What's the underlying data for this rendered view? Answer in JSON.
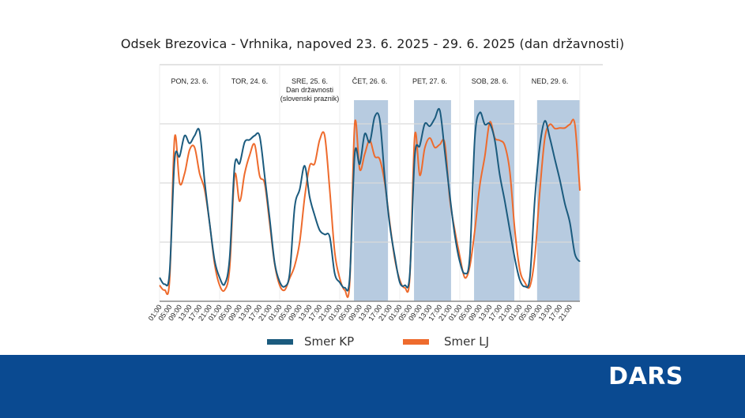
{
  "chart_data": {
    "type": "line",
    "title": "Odsek Brezovica - Vrhnika, napoved 23. 6. 2025 - 29. 6. 2025 (dan državnosti)",
    "xlabel": "",
    "ylabel": "",
    "x_unit": "hours since 23. 6. 00:00",
    "x_step_hours": 2,
    "xlim": [
      0,
      168
    ],
    "ylim": [
      0,
      400
    ],
    "grid": true,
    "legend_position": "bottom",
    "days": [
      {
        "lines": [
          "PON, 23. 6."
        ]
      },
      {
        "lines": [
          "TOR, 24. 6."
        ]
      },
      {
        "lines": [
          "SRE, 25. 6.",
          "Dan državnosti",
          "(slovenski praznik)"
        ]
      },
      {
        "lines": [
          "ČET, 26. 6."
        ]
      },
      {
        "lines": [
          "PET, 27. 6."
        ]
      },
      {
        "lines": [
          "SOB, 28. 6."
        ]
      },
      {
        "lines": [
          "NED, 29. 6."
        ]
      }
    ],
    "tick_labels": [
      "01:00",
      "05:00",
      "09:00",
      "13:00",
      "17:00",
      "21:00"
    ],
    "tick_hours": [
      1,
      5,
      9,
      13,
      17,
      21
    ],
    "highlight_ranges": [
      [
        77.7,
        91.3
      ],
      [
        101.7,
        116.5
      ],
      [
        125.7,
        141.8
      ],
      [
        150.9,
        168
      ]
    ],
    "series": [
      {
        "name": "Smer KP",
        "color": "#1b5b7e",
        "values": [
          40,
          29,
          49,
          239,
          245,
          280,
          267,
          280,
          287,
          203,
          132,
          69,
          40,
          29,
          73,
          229,
          233,
          269,
          273,
          280,
          279,
          212,
          140,
          65,
          33,
          25,
          47,
          159,
          189,
          229,
          176,
          145,
          120,
          113,
          109,
          47,
          32,
          23,
          40,
          249,
          232,
          283,
          269,
          312,
          307,
          209,
          129,
          76,
          32,
          27,
          45,
          245,
          263,
          300,
          296,
          309,
          323,
          253,
          179,
          112,
          67,
          47,
          76,
          276,
          319,
          299,
          300,
          272,
          213,
          169,
          120,
          72,
          36,
          25,
          40,
          173,
          263,
          305,
          276,
          240,
          205,
          165,
          133,
          80,
          67
        ]
      },
      {
        "name": "Smer LJ",
        "color": "#ee6b2d",
        "values": [
          27,
          19,
          36,
          276,
          200,
          216,
          256,
          260,
          216,
          189,
          132,
          63,
          27,
          19,
          56,
          213,
          169,
          216,
          247,
          265,
          212,
          199,
          132,
          63,
          27,
          19,
          39,
          60,
          100,
          176,
          229,
          233,
          273,
          280,
          189,
          83,
          39,
          19,
          32,
          300,
          223,
          249,
          272,
          245,
          240,
          200,
          133,
          72,
          36,
          23,
          40,
          280,
          213,
          259,
          276,
          260,
          265,
          267,
          173,
          120,
          76,
          40,
          59,
          120,
          196,
          245,
          303,
          276,
          272,
          263,
          219,
          120,
          53,
          32,
          25,
          76,
          187,
          276,
          299,
          292,
          293,
          293,
          299,
          299,
          187
        ]
      }
    ]
  },
  "footer": {
    "logo": "DARS"
  }
}
